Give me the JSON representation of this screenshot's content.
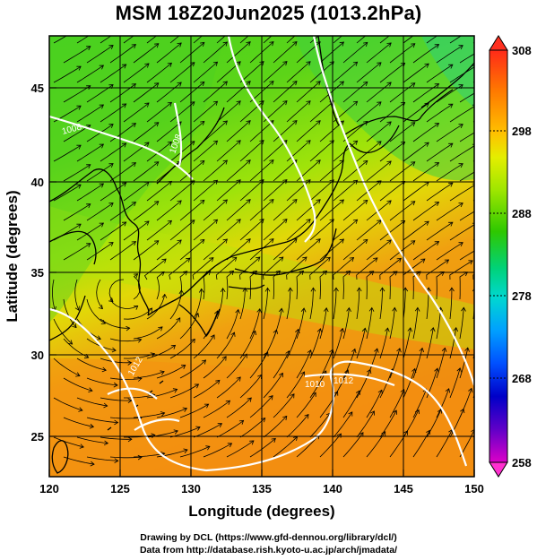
{
  "title": "MSM 18Z20Jun2025 (1013.2hPa)",
  "x_axis": {
    "label": "Longitude (degrees)",
    "ticks": [
      "120",
      "125",
      "130",
      "135",
      "140",
      "145",
      "150"
    ]
  },
  "y_axis": {
    "label": "Latitude  (degrees)",
    "ticks": [
      "25",
      "30",
      "35",
      "40",
      "45"
    ]
  },
  "colorbar": {
    "ticks": [
      "308",
      "298",
      "288",
      "278",
      "268",
      "258"
    ],
    "colors": [
      "#ff3b20",
      "#ff7a00",
      "#ffc400",
      "#e6f000",
      "#a8e800",
      "#3ecc00",
      "#00d27a",
      "#00d8d0",
      "#00a8ff",
      "#0055ff",
      "#0000d0",
      "#6a00c8",
      "#d000c8"
    ]
  },
  "contour_labels": [
    "1008",
    "1008",
    "1012",
    "1010",
    "1012"
  ],
  "credits": {
    "line1": "Drawing by DCL (https://www.gfd-dennou.org/library/dcl/)",
    "line2": "Data from http://database.rish.kyoto-u.ac.jp/arch/jmadata/"
  },
  "map_bounds": {
    "lon": [
      120,
      150
    ],
    "lat": [
      22.5,
      47.5
    ]
  }
}
